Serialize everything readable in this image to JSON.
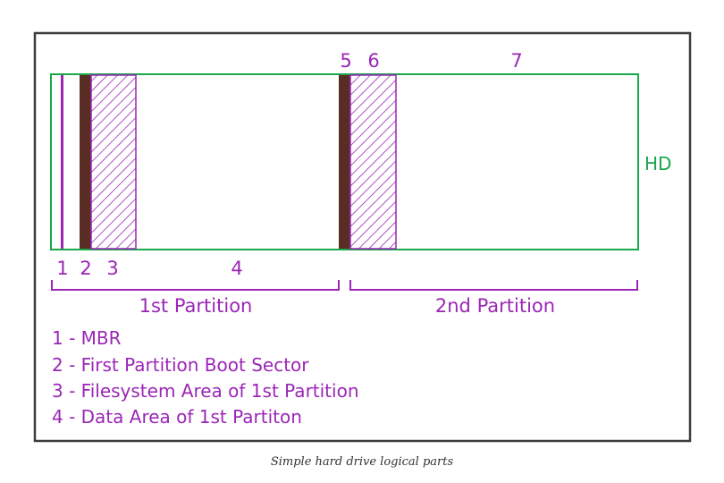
{
  "colors": {
    "disk_outline": "#19a84a",
    "label_purple": "#9b26b6",
    "boot_sector_brown": "#5a2d24",
    "frame": "#3c3c3c"
  },
  "disk": {
    "label": "HD",
    "top_numbers": [
      "5",
      "6",
      "7"
    ],
    "bottom_numbers": [
      "1",
      "2",
      "3",
      "4"
    ]
  },
  "partitions": [
    "1st Partition",
    "2nd Partition"
  ],
  "legend": [
    "1 - MBR",
    "2 - First Partition Boot Sector",
    "3 - Filesystem Area of 1st Partition",
    "4 - Data Area of 1st Partiton"
  ],
  "caption": "Simple hard drive logical parts"
}
